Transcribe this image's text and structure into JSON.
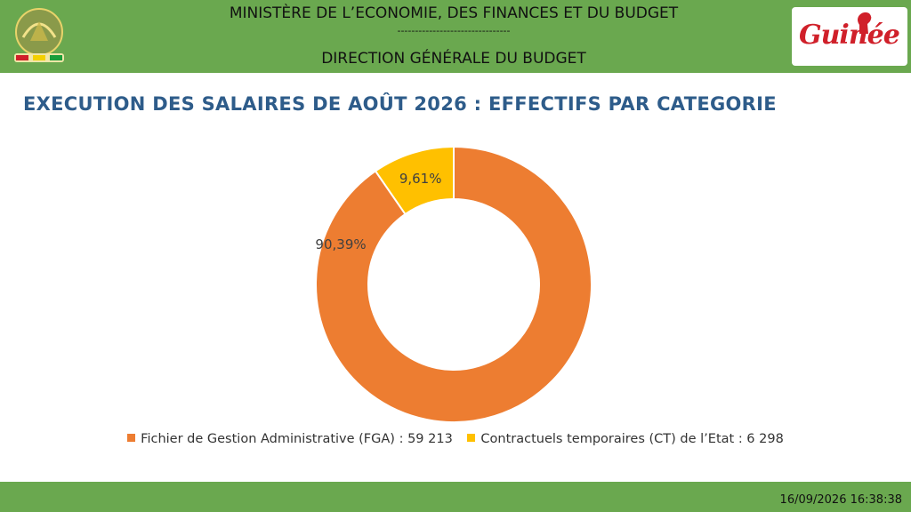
{
  "header": {
    "ministry": "MINISTÈRE DE L’ECONOMIE, DES FINANCES ET DU BUDGET",
    "separator": "--------------------------------",
    "direction": "DIRECTION GÉNÉRALE DU BUDGET"
  },
  "logo": {
    "text": "Guinée"
  },
  "title": "EXECUTION DES SALAIRES DE AOÛT 2026 : EFFECTIFS PAR CATEGORIE",
  "chart_data": {
    "type": "pie",
    "subtype": "doughnut",
    "categories": [
      "Fichier de Gestion Administrative (FGA) : 59 213",
      "Contractuels temporaires (CT) de l’Etat : 6 298"
    ],
    "values": [
      59213,
      6298
    ],
    "percent_labels": [
      "90,39%",
      "9,61%"
    ],
    "colors": [
      "#ed7d31",
      "#ffc000"
    ],
    "legend_position": "bottom"
  },
  "footer": {
    "timestamp": "16/09/2026 16:38:38"
  },
  "colors": {
    "header_green": "#6aa84f",
    "title_blue": "#2e5c8a"
  }
}
